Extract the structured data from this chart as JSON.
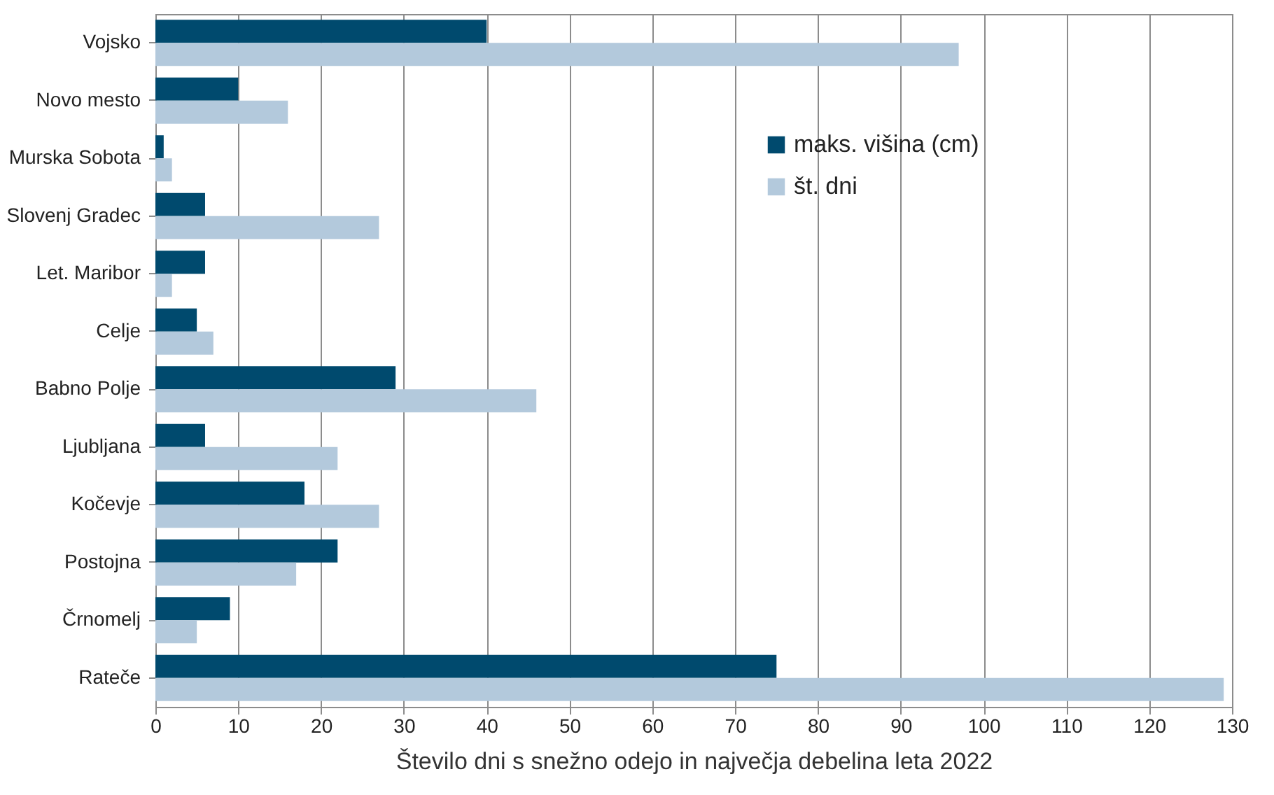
{
  "chart_data": {
    "type": "bar",
    "orientation": "horizontal",
    "xlabel": "Število dni s snežno odejo in največja debelina leta 2022",
    "categories": [
      "Vojsko",
      "Novo mesto",
      "Murska Sobota",
      "Slovenj Gradec",
      "Let. Maribor",
      "Celje",
      "Babno Polje",
      "Ljubljana",
      "Kočevje",
      "Postojna",
      "Črnomelj",
      "Rateče"
    ],
    "series": [
      {
        "name": "maks. višina (cm)",
        "color": "#004a6e",
        "values": [
          40,
          10,
          1,
          6,
          6,
          5,
          29,
          6,
          18,
          22,
          9,
          75
        ]
      },
      {
        "name": "št. dni",
        "color": "#b3c9dc",
        "values": [
          97,
          16,
          2,
          27,
          2,
          7,
          46,
          22,
          27,
          17,
          5,
          129
        ]
      }
    ],
    "xlim": [
      0,
      130
    ],
    "xticks": [
      0,
      10,
      20,
      30,
      40,
      50,
      60,
      70,
      80,
      90,
      100,
      110,
      120,
      130
    ],
    "grid": "x",
    "legend": "top right"
  }
}
